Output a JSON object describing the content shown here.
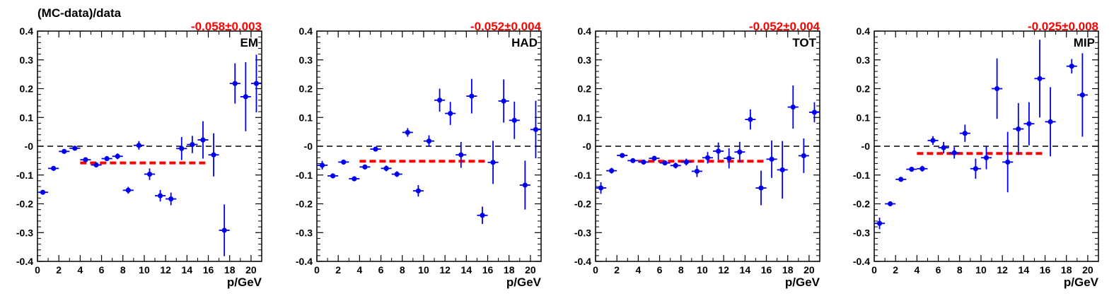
{
  "chart_data": [
    {
      "type": "scatter",
      "panel_label": "EM",
      "fit_result": "-0.058±0.003",
      "xlabel": "p/GeV",
      "ylabel": "(MC-data)/data",
      "xlim": [
        0,
        21
      ],
      "ylim": [
        -0.4,
        0.4
      ],
      "xticks": [
        "0",
        "2",
        "4",
        "6",
        "8",
        "10",
        "12",
        "14",
        "16",
        "18",
        "20"
      ],
      "yticks": [
        "-0.4",
        "-0.3",
        "-0.2",
        "-0.1",
        "-0",
        "0.1",
        "0.2",
        "0.3",
        "0.4"
      ],
      "fit_line": {
        "x_start": 4,
        "x_end": 16,
        "y": -0.058
      },
      "series": [
        {
          "x": [
            0.5,
            1.5,
            2.5,
            3.5,
            4.5,
            5.5,
            6.5,
            7.5,
            8.5,
            9.5,
            10.5,
            11.5,
            12.5,
            13.5,
            14.5,
            15.5,
            16.5,
            17.5,
            18.5,
            19.5,
            20.5
          ],
          "y": [
            -0.16,
            -0.077,
            -0.018,
            -0.007,
            -0.047,
            -0.065,
            -0.043,
            -0.035,
            -0.153,
            0.003,
            -0.097,
            -0.172,
            -0.183,
            -0.008,
            0.006,
            0.022,
            -0.03,
            -0.292,
            0.218,
            0.172,
            0.218
          ],
          "yerr": [
            0.008,
            0.005,
            0.006,
            0.005,
            0.007,
            0.006,
            0.008,
            0.01,
            0.012,
            0.015,
            0.02,
            0.02,
            0.022,
            0.04,
            0.03,
            0.065,
            0.075,
            0.09,
            0.07,
            0.12,
            0.1
          ]
        }
      ]
    },
    {
      "type": "scatter",
      "panel_label": "HAD",
      "fit_result": "-0.052±0.004",
      "xlabel": "p/GeV",
      "xlim": [
        0,
        21
      ],
      "ylim": [
        -0.4,
        0.4
      ],
      "xticks": [
        "0",
        "2",
        "4",
        "6",
        "8",
        "10",
        "12",
        "14",
        "16",
        "18",
        "20"
      ],
      "yticks": [
        "-0.4",
        "-0.3",
        "-0.2",
        "-0.1",
        "-0",
        "0.1",
        "0.2",
        "0.3",
        "0.4"
      ],
      "fit_line": {
        "x_start": 4,
        "x_end": 16,
        "y": -0.052
      },
      "series": [
        {
          "x": [
            0.5,
            1.5,
            2.5,
            3.5,
            4.5,
            5.5,
            6.5,
            7.5,
            8.5,
            9.5,
            10.5,
            11.5,
            12.5,
            13.5,
            14.5,
            15.5,
            16.5,
            17.5,
            18.5,
            19.5,
            20.5
          ],
          "y": [
            -0.066,
            -0.103,
            -0.055,
            -0.113,
            -0.072,
            -0.01,
            -0.077,
            -0.097,
            0.048,
            -0.155,
            0.018,
            0.16,
            0.114,
            -0.03,
            0.174,
            -0.24,
            -0.056,
            0.157,
            0.09,
            -0.135,
            0.058
          ],
          "yerr": [
            0.015,
            0.007,
            0.008,
            0.008,
            0.008,
            0.008,
            0.01,
            0.01,
            0.015,
            0.02,
            0.02,
            0.04,
            0.04,
            0.045,
            0.06,
            0.03,
            0.075,
            0.075,
            0.065,
            0.085,
            0.1
          ]
        }
      ]
    },
    {
      "type": "scatter",
      "panel_label": "TOT",
      "fit_result": "-0.052±0.004",
      "xlabel": "p/GeV",
      "xlim": [
        0,
        21
      ],
      "ylim": [
        -0.4,
        0.4
      ],
      "xticks": [
        "0",
        "2",
        "4",
        "6",
        "8",
        "10",
        "12",
        "14",
        "16",
        "18",
        "20"
      ],
      "yticks": [
        "-0.4",
        "-0.3",
        "-0.2",
        "-0.1",
        "-0",
        "0.1",
        "0.2",
        "0.3",
        "0.4"
      ],
      "fit_line": {
        "x_start": 4,
        "x_end": 16,
        "y": -0.052
      },
      "series": [
        {
          "x": [
            0.5,
            1.5,
            2.5,
            3.5,
            4.5,
            5.5,
            6.5,
            7.5,
            8.5,
            9.5,
            10.5,
            11.5,
            12.5,
            13.5,
            14.5,
            15.5,
            16.5,
            17.5,
            18.5,
            19.5,
            20.5
          ],
          "y": [
            -0.145,
            -0.085,
            -0.032,
            -0.05,
            -0.055,
            -0.042,
            -0.058,
            -0.067,
            -0.055,
            -0.087,
            -0.04,
            -0.017,
            -0.042,
            -0.02,
            0.093,
            -0.145,
            -0.045,
            -0.082,
            0.136,
            -0.033,
            0.118
          ],
          "yerr": [
            0.02,
            0.01,
            0.006,
            0.006,
            0.006,
            0.006,
            0.008,
            0.01,
            0.012,
            0.02,
            0.02,
            0.03,
            0.035,
            0.035,
            0.035,
            0.06,
            0.065,
            0.1,
            0.075,
            0.06,
            0.035
          ]
        }
      ]
    },
    {
      "type": "scatter",
      "panel_label": "MIP",
      "fit_result": "-0.025±0.008",
      "xlabel": "p/GeV",
      "xlim": [
        0,
        21
      ],
      "ylim": [
        -0.4,
        0.4
      ],
      "xticks": [
        "0",
        "2",
        "4",
        "6",
        "8",
        "10",
        "12",
        "14",
        "16",
        "18",
        "20"
      ],
      "yticks": [
        "-0.4",
        "-0.3",
        "-0.2",
        "-0.1",
        "-0",
        "0.1",
        "0.2",
        "0.3",
        "0.4"
      ],
      "fit_line": {
        "x_start": 4,
        "x_end": 16,
        "y": -0.025
      },
      "series": [
        {
          "x": [
            0.5,
            1.5,
            2.5,
            3.5,
            4.5,
            5.5,
            6.5,
            7.5,
            8.5,
            9.5,
            10.5,
            11.5,
            12.5,
            13.5,
            14.5,
            15.5,
            16.5,
            18.5,
            19.5
          ],
          "y": [
            -0.268,
            -0.2,
            -0.115,
            -0.08,
            -0.078,
            0.02,
            -0.005,
            -0.023,
            0.045,
            -0.078,
            -0.04,
            0.2,
            -0.055,
            0.06,
            0.078,
            0.235,
            0.085,
            0.278,
            0.178
          ],
          "yerr": [
            0.02,
            0.008,
            0.008,
            0.008,
            0.01,
            0.015,
            0.02,
            0.02,
            0.03,
            0.035,
            0.04,
            0.105,
            0.105,
            0.09,
            0.075,
            0.135,
            0.12,
            0.025,
            0.145
          ]
        }
      ]
    }
  ]
}
